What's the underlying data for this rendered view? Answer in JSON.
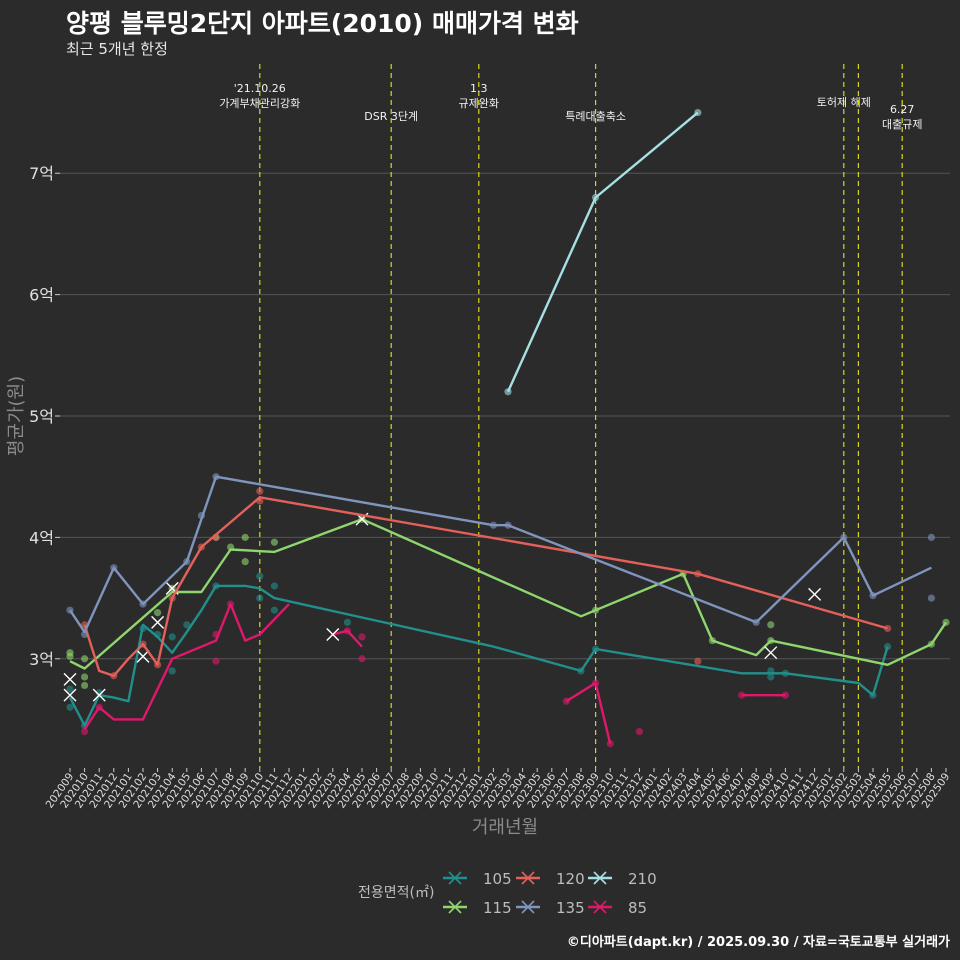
{
  "title": "양평 블루밍2단지 아파트(2010) 매매가격 변화",
  "subtitle": "최근 5개년 한정",
  "caption": "©디아파트(dapt.kr) / 2025.09.30 / 자료=국토교통부 실거래가",
  "colors": {
    "background": "#2b2b2c",
    "grid": "#555555",
    "event_line": "#d6d61c",
    "series": {
      "105": "#21908c",
      "115": "#8fd66e",
      "120": "#e4605a",
      "135": "#7f95bd",
      "210": "#a6e0e2",
      "85": "#e0186c"
    }
  },
  "chart_data": {
    "type": "line",
    "title": "양평 블루밍2단지 아파트(2010) 매매가격 변화",
    "subtitle": "최근 5개년 한정",
    "xlabel": "거래년월",
    "ylabel": "평균가(원)",
    "ylim": [
      2.1,
      7.9
    ],
    "yticks": [
      3,
      4,
      5,
      6,
      7
    ],
    "ytick_labels": [
      "3억",
      "4억",
      "5억",
      "6억",
      "7억"
    ],
    "months": [
      "202009",
      "202010",
      "202011",
      "202012",
      "202101",
      "202102",
      "202103",
      "202104",
      "202105",
      "202106",
      "202107",
      "202108",
      "202109",
      "202110",
      "202111",
      "202112",
      "202201",
      "202202",
      "202203",
      "202204",
      "202205",
      "202206",
      "202207",
      "202208",
      "202209",
      "202210",
      "202211",
      "202212",
      "202301",
      "202302",
      "202303",
      "202304",
      "202305",
      "202306",
      "202307",
      "202308",
      "202309",
      "202310",
      "202311",
      "202312",
      "202401",
      "202402",
      "202403",
      "202404",
      "202405",
      "202406",
      "202407",
      "202408",
      "202409",
      "202410",
      "202411",
      "202412",
      "202501",
      "202502",
      "202503",
      "202504",
      "202505",
      "202506",
      "202507",
      "202508",
      "202509"
    ],
    "events": [
      {
        "month": "202110",
        "label": "'21.10.26\n가계부채관리강화",
        "row": 0
      },
      {
        "month": "202207",
        "label": "DSR 3단계",
        "row": 2
      },
      {
        "month": "202301",
        "label": "1.3\n규제완화",
        "row": 0
      },
      {
        "month": "202309",
        "label": "특례대출축소",
        "row": 2
      },
      {
        "month": "202502",
        "label": "토허제 해제",
        "row": 1
      },
      {
        "month": "202503",
        "label": "",
        "row": 1
      },
      {
        "month": "202506",
        "label": "6.27\n대출규제",
        "row": 1.5
      }
    ],
    "legend_title": "전용면적(㎡)",
    "series": [
      {
        "name": "105",
        "line": [
          [
            "202009",
            2.68
          ],
          [
            "202010",
            2.45
          ],
          [
            "202011",
            2.7
          ],
          [
            "202012",
            2.68
          ],
          [
            "202101",
            2.65
          ],
          [
            "202102",
            3.28
          ],
          [
            "202103",
            3.18
          ],
          [
            "202104",
            3.05
          ],
          [
            "202105",
            3.22
          ],
          [
            "202106",
            3.4
          ],
          [
            "202107",
            3.6
          ],
          [
            "202109",
            3.6
          ],
          [
            "202110",
            3.58
          ],
          [
            "202111",
            3.5
          ],
          [
            "202302",
            3.1
          ],
          [
            "202308",
            2.9
          ],
          [
            "202309",
            3.08
          ],
          [
            "202407",
            2.88
          ],
          [
            "202410",
            2.88
          ],
          [
            "202503",
            2.8
          ],
          [
            "202504",
            2.7
          ],
          [
            "202505",
            3.1
          ]
        ],
        "points": [
          [
            "202009",
            2.6
          ],
          [
            "202009",
            2.75
          ],
          [
            "202010",
            2.45
          ],
          [
            "202011",
            2.72
          ],
          [
            "202102",
            3.25
          ],
          [
            "202103",
            3.2
          ],
          [
            "202104",
            3.18
          ],
          [
            "202104",
            2.9
          ],
          [
            "202105",
            3.28
          ],
          [
            "202107",
            3.6
          ],
          [
            "202110",
            3.68
          ],
          [
            "202110",
            3.5
          ],
          [
            "202111",
            3.6
          ],
          [
            "202111",
            3.4
          ],
          [
            "202204",
            3.3
          ],
          [
            "202308",
            2.9
          ],
          [
            "202309",
            3.08
          ],
          [
            "202409",
            2.85
          ],
          [
            "202409",
            2.9
          ],
          [
            "202410",
            2.88
          ],
          [
            "202504",
            2.7
          ],
          [
            "202505",
            3.1
          ]
        ],
        "crosses": [
          [
            "202009",
            2.7
          ],
          [
            "202011",
            2.7
          ],
          [
            "202102",
            3.02
          ]
        ]
      },
      {
        "name": "115",
        "line": [
          [
            "202009",
            2.98
          ],
          [
            "202010",
            2.92
          ],
          [
            "202104",
            3.55
          ],
          [
            "202106",
            3.55
          ],
          [
            "202108",
            3.9
          ],
          [
            "202111",
            3.88
          ],
          [
            "202205",
            4.15
          ],
          [
            "202308",
            3.35
          ],
          [
            "202309",
            3.4
          ],
          [
            "202403",
            3.7
          ],
          [
            "202405",
            3.15
          ],
          [
            "202408",
            3.03
          ],
          [
            "202409",
            3.15
          ],
          [
            "202505",
            2.95
          ],
          [
            "202508",
            3.12
          ],
          [
            "202509",
            3.3
          ]
        ],
        "points": [
          [
            "202009",
            3.05
          ],
          [
            "202009",
            3.02
          ],
          [
            "202010",
            2.78
          ],
          [
            "202010",
            2.85
          ],
          [
            "202010",
            3.0
          ],
          [
            "202103",
            3.38
          ],
          [
            "202104",
            3.58
          ],
          [
            "202107",
            4.0
          ],
          [
            "202108",
            3.92
          ],
          [
            "202109",
            4.0
          ],
          [
            "202109",
            3.8
          ],
          [
            "202111",
            3.96
          ],
          [
            "202205",
            4.15
          ],
          [
            "202309",
            3.4
          ],
          [
            "202403",
            3.7
          ],
          [
            "202405",
            3.15
          ],
          [
            "202409",
            3.28
          ],
          [
            "202409",
            3.15
          ],
          [
            "202508",
            3.12
          ],
          [
            "202509",
            3.3
          ]
        ],
        "crosses": [
          [
            "202009",
            2.83
          ],
          [
            "202103",
            3.3
          ],
          [
            "202104",
            3.58
          ],
          [
            "202205",
            4.15
          ],
          [
            "202409",
            3.05
          ]
        ]
      },
      {
        "name": "120",
        "line": [
          [
            "202010",
            3.28
          ],
          [
            "202011",
            2.9
          ],
          [
            "202012",
            2.86
          ],
          [
            "202101",
            3.0
          ],
          [
            "202102",
            3.12
          ],
          [
            "202103",
            2.95
          ],
          [
            "202104",
            3.5
          ],
          [
            "202106",
            3.92
          ],
          [
            "202110",
            4.33
          ],
          [
            "202404",
            3.7
          ],
          [
            "202505",
            3.25
          ]
        ],
        "points": [
          [
            "202010",
            3.28
          ],
          [
            "202012",
            2.86
          ],
          [
            "202102",
            3.12
          ],
          [
            "202103",
            2.95
          ],
          [
            "202104",
            3.5
          ],
          [
            "202106",
            3.92
          ],
          [
            "202107",
            4.0
          ],
          [
            "202110",
            4.38
          ],
          [
            "202110",
            4.3
          ],
          [
            "202404",
            3.7
          ],
          [
            "202404",
            2.98
          ],
          [
            "202505",
            3.25
          ]
        ],
        "crosses": []
      },
      {
        "name": "135",
        "line": [
          [
            "202009",
            3.4
          ],
          [
            "202010",
            3.22
          ],
          [
            "202012",
            3.75
          ],
          [
            "202102",
            3.45
          ],
          [
            "202105",
            3.8
          ],
          [
            "202107",
            4.5
          ],
          [
            "202302",
            4.1
          ],
          [
            "202303",
            4.1
          ],
          [
            "202408",
            3.3
          ],
          [
            "202502",
            4.0
          ],
          [
            "202504",
            3.52
          ],
          [
            "202508",
            3.75
          ]
        ],
        "points": [
          [
            "202009",
            3.4
          ],
          [
            "202010",
            3.2
          ],
          [
            "202012",
            3.75
          ],
          [
            "202102",
            3.45
          ],
          [
            "202105",
            3.8
          ],
          [
            "202106",
            4.18
          ],
          [
            "202107",
            4.5
          ],
          [
            "202302",
            4.1
          ],
          [
            "202303",
            4.1
          ],
          [
            "202408",
            3.3
          ],
          [
            "202502",
            4.0
          ],
          [
            "202504",
            3.52
          ],
          [
            "202508",
            4.0
          ],
          [
            "202508",
            3.5
          ]
        ],
        "crosses": [
          [
            "202412",
            3.53
          ]
        ]
      },
      {
        "name": "210",
        "line": [
          [
            "202303",
            5.2
          ],
          [
            "202309",
            6.8
          ],
          [
            "202404",
            7.5
          ]
        ],
        "points": [
          [
            "202303",
            5.2
          ],
          [
            "202309",
            6.8
          ],
          [
            "202404",
            7.5
          ]
        ],
        "crosses": []
      },
      {
        "name": "85",
        "line": [
          [
            "202010",
            2.42
          ],
          [
            "202011",
            2.6
          ],
          [
            "202012",
            2.5
          ],
          [
            "202102",
            2.5
          ],
          [
            "202104",
            3.0
          ],
          [
            "202107",
            3.15
          ],
          [
            "202108",
            3.45
          ],
          [
            "202109",
            3.15
          ],
          [
            "202110",
            3.2
          ],
          [
            "202112",
            3.45
          ]
        ],
        "line2": [
          [
            "202203",
            3.2
          ],
          [
            "202204",
            3.23
          ],
          [
            "202205",
            3.1
          ]
        ],
        "line3": [
          [
            "202307",
            2.65
          ],
          [
            "202309",
            2.8
          ],
          [
            "202310",
            2.3
          ]
        ],
        "line4": [
          [
            "202407",
            2.7
          ],
          [
            "202410",
            2.7
          ]
        ],
        "points": [
          [
            "202010",
            2.4
          ],
          [
            "202011",
            2.6
          ],
          [
            "202107",
            3.2
          ],
          [
            "202107",
            2.98
          ],
          [
            "202108",
            3.45
          ],
          [
            "202204",
            3.23
          ],
          [
            "202205",
            3.18
          ],
          [
            "202205",
            3.0
          ],
          [
            "202307",
            2.65
          ],
          [
            "202309",
            2.8
          ],
          [
            "202310",
            2.3
          ],
          [
            "202312",
            2.4
          ],
          [
            "202407",
            2.7
          ],
          [
            "202410",
            2.7
          ]
        ],
        "crosses": [
          [
            "202203",
            3.2
          ]
        ]
      }
    ]
  }
}
